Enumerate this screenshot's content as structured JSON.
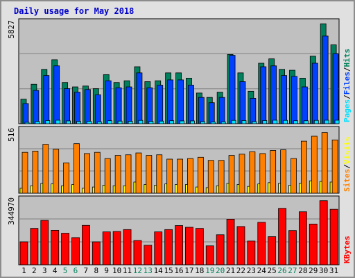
{
  "title": "Daily usage for May 2018",
  "colors": {
    "hits": "#00805c",
    "files": "#0040ff",
    "pages": "#00e0ff",
    "visits": "#ffff00",
    "sites": "#ff8000",
    "kbytes": "#ff0000",
    "panel_bg": "#c0c0c0",
    "frame_bg": "#e0e0e0",
    "title": "#0000cc",
    "weekend": "#00805c",
    "weekday": "#000000"
  },
  "chart_data": [
    {
      "type": "bar",
      "name": "hits-files-pages",
      "max_label": "5827",
      "legend": [
        {
          "text": "Pages",
          "color": "#00e0ff"
        },
        {
          "text": "/",
          "color": "#000000"
        },
        {
          "text": "Files",
          "color": "#0040ff"
        },
        {
          "text": "/",
          "color": "#000000"
        },
        {
          "text": "Hits",
          "color": "#00805c"
        }
      ],
      "ylim": [
        0,
        5827
      ],
      "series": [
        {
          "name": "Hits",
          "values": [
            1400,
            2250,
            3100,
            3650,
            2350,
            2100,
            2150,
            2000,
            2800,
            2350,
            2450,
            3250,
            2400,
            2450,
            2900,
            2900,
            2600,
            1750,
            1500,
            1800,
            3950,
            2900,
            1850,
            3450,
            3700,
            3100,
            3050,
            2600,
            3850,
            5700,
            4500
          ]
        },
        {
          "name": "Files",
          "values": [
            1150,
            1900,
            2750,
            3300,
            2000,
            1800,
            1950,
            1650,
            2450,
            2050,
            2100,
            2900,
            2050,
            2200,
            2500,
            2500,
            2200,
            1500,
            1200,
            1500,
            3900,
            2400,
            1450,
            3250,
            3300,
            2750,
            2700,
            2100,
            3450,
            5000,
            4000
          ]
        },
        {
          "name": "Pages",
          "values": [
            80,
            130,
            180,
            200,
            160,
            130,
            140,
            110,
            170,
            150,
            140,
            190,
            140,
            150,
            170,
            160,
            160,
            120,
            100,
            110,
            190,
            180,
            120,
            180,
            200,
            190,
            170,
            170,
            190,
            200,
            200
          ]
        }
      ]
    },
    {
      "type": "bar",
      "name": "sites-visits",
      "max_label": "516",
      "legend": [
        {
          "text": "Sites",
          "color": "#ff8000"
        },
        {
          "text": "/",
          "color": "#000000"
        },
        {
          "text": "Visits",
          "color": "#ffff00"
        }
      ],
      "ylim": [
        0,
        516
      ],
      "series": [
        {
          "name": "Sites",
          "values": [
            330,
            340,
            395,
            355,
            245,
            400,
            320,
            330,
            280,
            305,
            310,
            325,
            305,
            310,
            275,
            275,
            280,
            290,
            265,
            265,
            305,
            315,
            335,
            320,
            345,
            350,
            280,
            420,
            460,
            490,
            430
          ]
        },
        {
          "name": "Visits",
          "values": [
            40,
            60,
            80,
            75,
            60,
            70,
            40,
            50,
            65,
            60,
            60,
            90,
            70,
            65,
            75,
            70,
            70,
            50,
            45,
            60,
            80,
            70,
            55,
            75,
            85,
            80,
            65,
            80,
            100,
            95,
            90
          ]
        }
      ]
    },
    {
      "type": "bar",
      "name": "kbytes",
      "max_label": "344970",
      "legend": [
        {
          "text": "KBytes",
          "color": "#ff0000"
        }
      ],
      "ylim": [
        0,
        344970
      ],
      "series": [
        {
          "name": "KBytes",
          "values": [
            120000,
            190000,
            232000,
            180000,
            165000,
            142000,
            206000,
            120000,
            172000,
            174000,
            184000,
            127000,
            102000,
            172000,
            184000,
            205000,
            196000,
            190000,
            99000,
            157000,
            238000,
            200000,
            124000,
            222000,
            147000,
            295000,
            179000,
            277000,
            213000,
            335000,
            290000
          ]
        }
      ]
    }
  ],
  "x_labels": [
    "1",
    "2",
    "3",
    "4",
    "5",
    "6",
    "7",
    "8",
    "9",
    "10",
    "11",
    "12",
    "13",
    "14",
    "15",
    "16",
    "17",
    "18",
    "19",
    "20",
    "21",
    "22",
    "23",
    "24",
    "25",
    "26",
    "27",
    "28",
    "29",
    "30",
    "31"
  ],
  "weekend_days": [
    5,
    6,
    12,
    13,
    19,
    20,
    26,
    27
  ]
}
